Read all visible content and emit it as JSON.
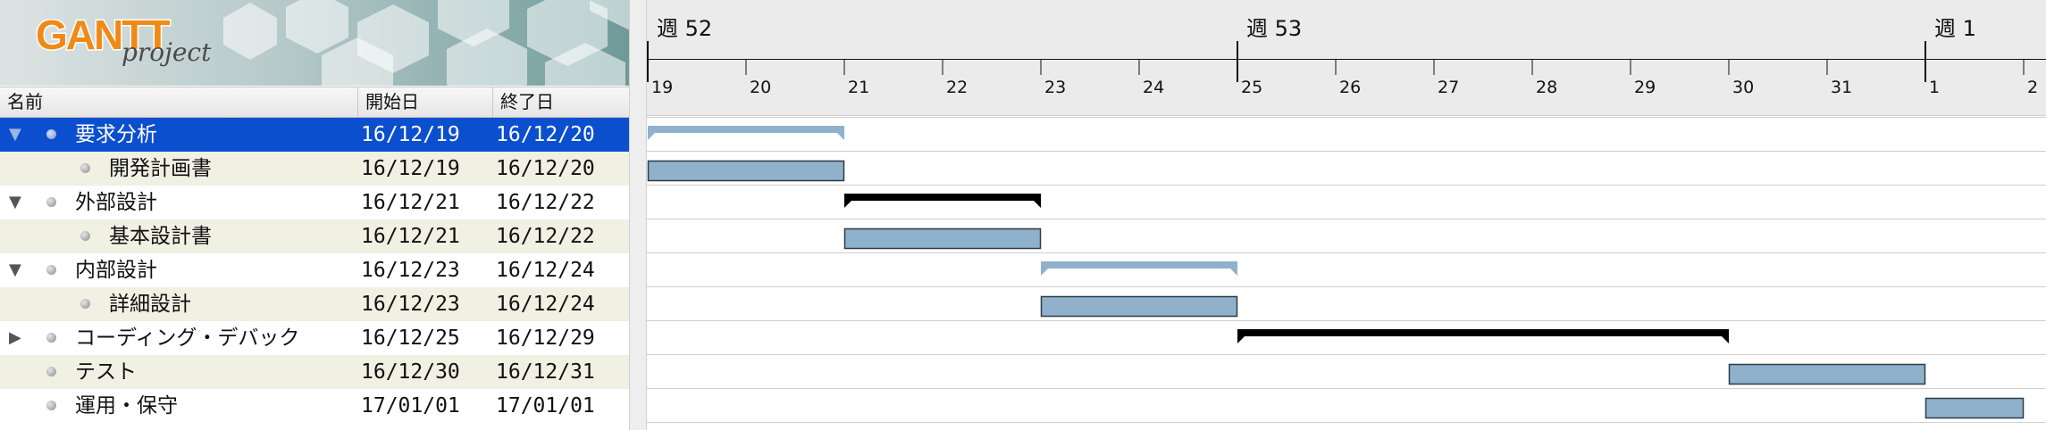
{
  "logo": {
    "word": "GANTT",
    "sub": "project"
  },
  "columns": {
    "name": "名前",
    "start": "開始日",
    "end": "終了日"
  },
  "colors": {
    "selection": "#0b4fcf",
    "task_bar": "#8fb1cc",
    "task_bar_border": "#2f3b46",
    "summary_light": "#8fb1cc",
    "summary_dark": "#000000",
    "alt_row": "#f0f0e3"
  },
  "tasks": [
    {
      "name": "要求分析",
      "start": "16/12/19",
      "end": "16/12/20",
      "level": 0,
      "expander": "expanded",
      "selected": true,
      "kind": "summary-light",
      "start_day": 0,
      "end_day": 2
    },
    {
      "name": "開発計画書",
      "start": "16/12/19",
      "end": "16/12/20",
      "level": 1,
      "expander": "none",
      "selected": false,
      "kind": "task",
      "start_day": 0,
      "end_day": 2
    },
    {
      "name": "外部設計",
      "start": "16/12/21",
      "end": "16/12/22",
      "level": 0,
      "expander": "expanded",
      "selected": false,
      "kind": "summary-dark",
      "start_day": 2,
      "end_day": 4
    },
    {
      "name": "基本設計書",
      "start": "16/12/21",
      "end": "16/12/22",
      "level": 1,
      "expander": "none",
      "selected": false,
      "kind": "task",
      "start_day": 2,
      "end_day": 4
    },
    {
      "name": "内部設計",
      "start": "16/12/23",
      "end": "16/12/24",
      "level": 0,
      "expander": "expanded",
      "selected": false,
      "kind": "summary-light",
      "start_day": 4,
      "end_day": 6
    },
    {
      "name": "詳細設計",
      "start": "16/12/23",
      "end": "16/12/24",
      "level": 1,
      "expander": "none",
      "selected": false,
      "kind": "task",
      "start_day": 4,
      "end_day": 6
    },
    {
      "name": "コーディング・デバック",
      "start": "16/12/25",
      "end": "16/12/29",
      "level": 0,
      "expander": "collapsed",
      "selected": false,
      "kind": "summary-dark",
      "start_day": 6,
      "end_day": 11
    },
    {
      "name": "テスト",
      "start": "16/12/30",
      "end": "16/12/31",
      "level": 0,
      "expander": "none",
      "selected": false,
      "kind": "task",
      "start_day": 11,
      "end_day": 13
    },
    {
      "name": "運用・保守",
      "start": "17/01/01",
      "end": "17/01/01",
      "level": 0,
      "expander": "none",
      "selected": false,
      "kind": "task",
      "start_day": 13,
      "end_day": 14
    }
  ],
  "timeline": {
    "weeks": [
      {
        "label": "週 52",
        "day_index": 0
      },
      {
        "label": "週 53",
        "day_index": 6
      },
      {
        "label": "週 1",
        "day_index": 13
      }
    ],
    "days": [
      "19",
      "20",
      "21",
      "22",
      "23",
      "24",
      "25",
      "26",
      "27",
      "28",
      "29",
      "30",
      "31",
      "1",
      "2"
    ]
  }
}
